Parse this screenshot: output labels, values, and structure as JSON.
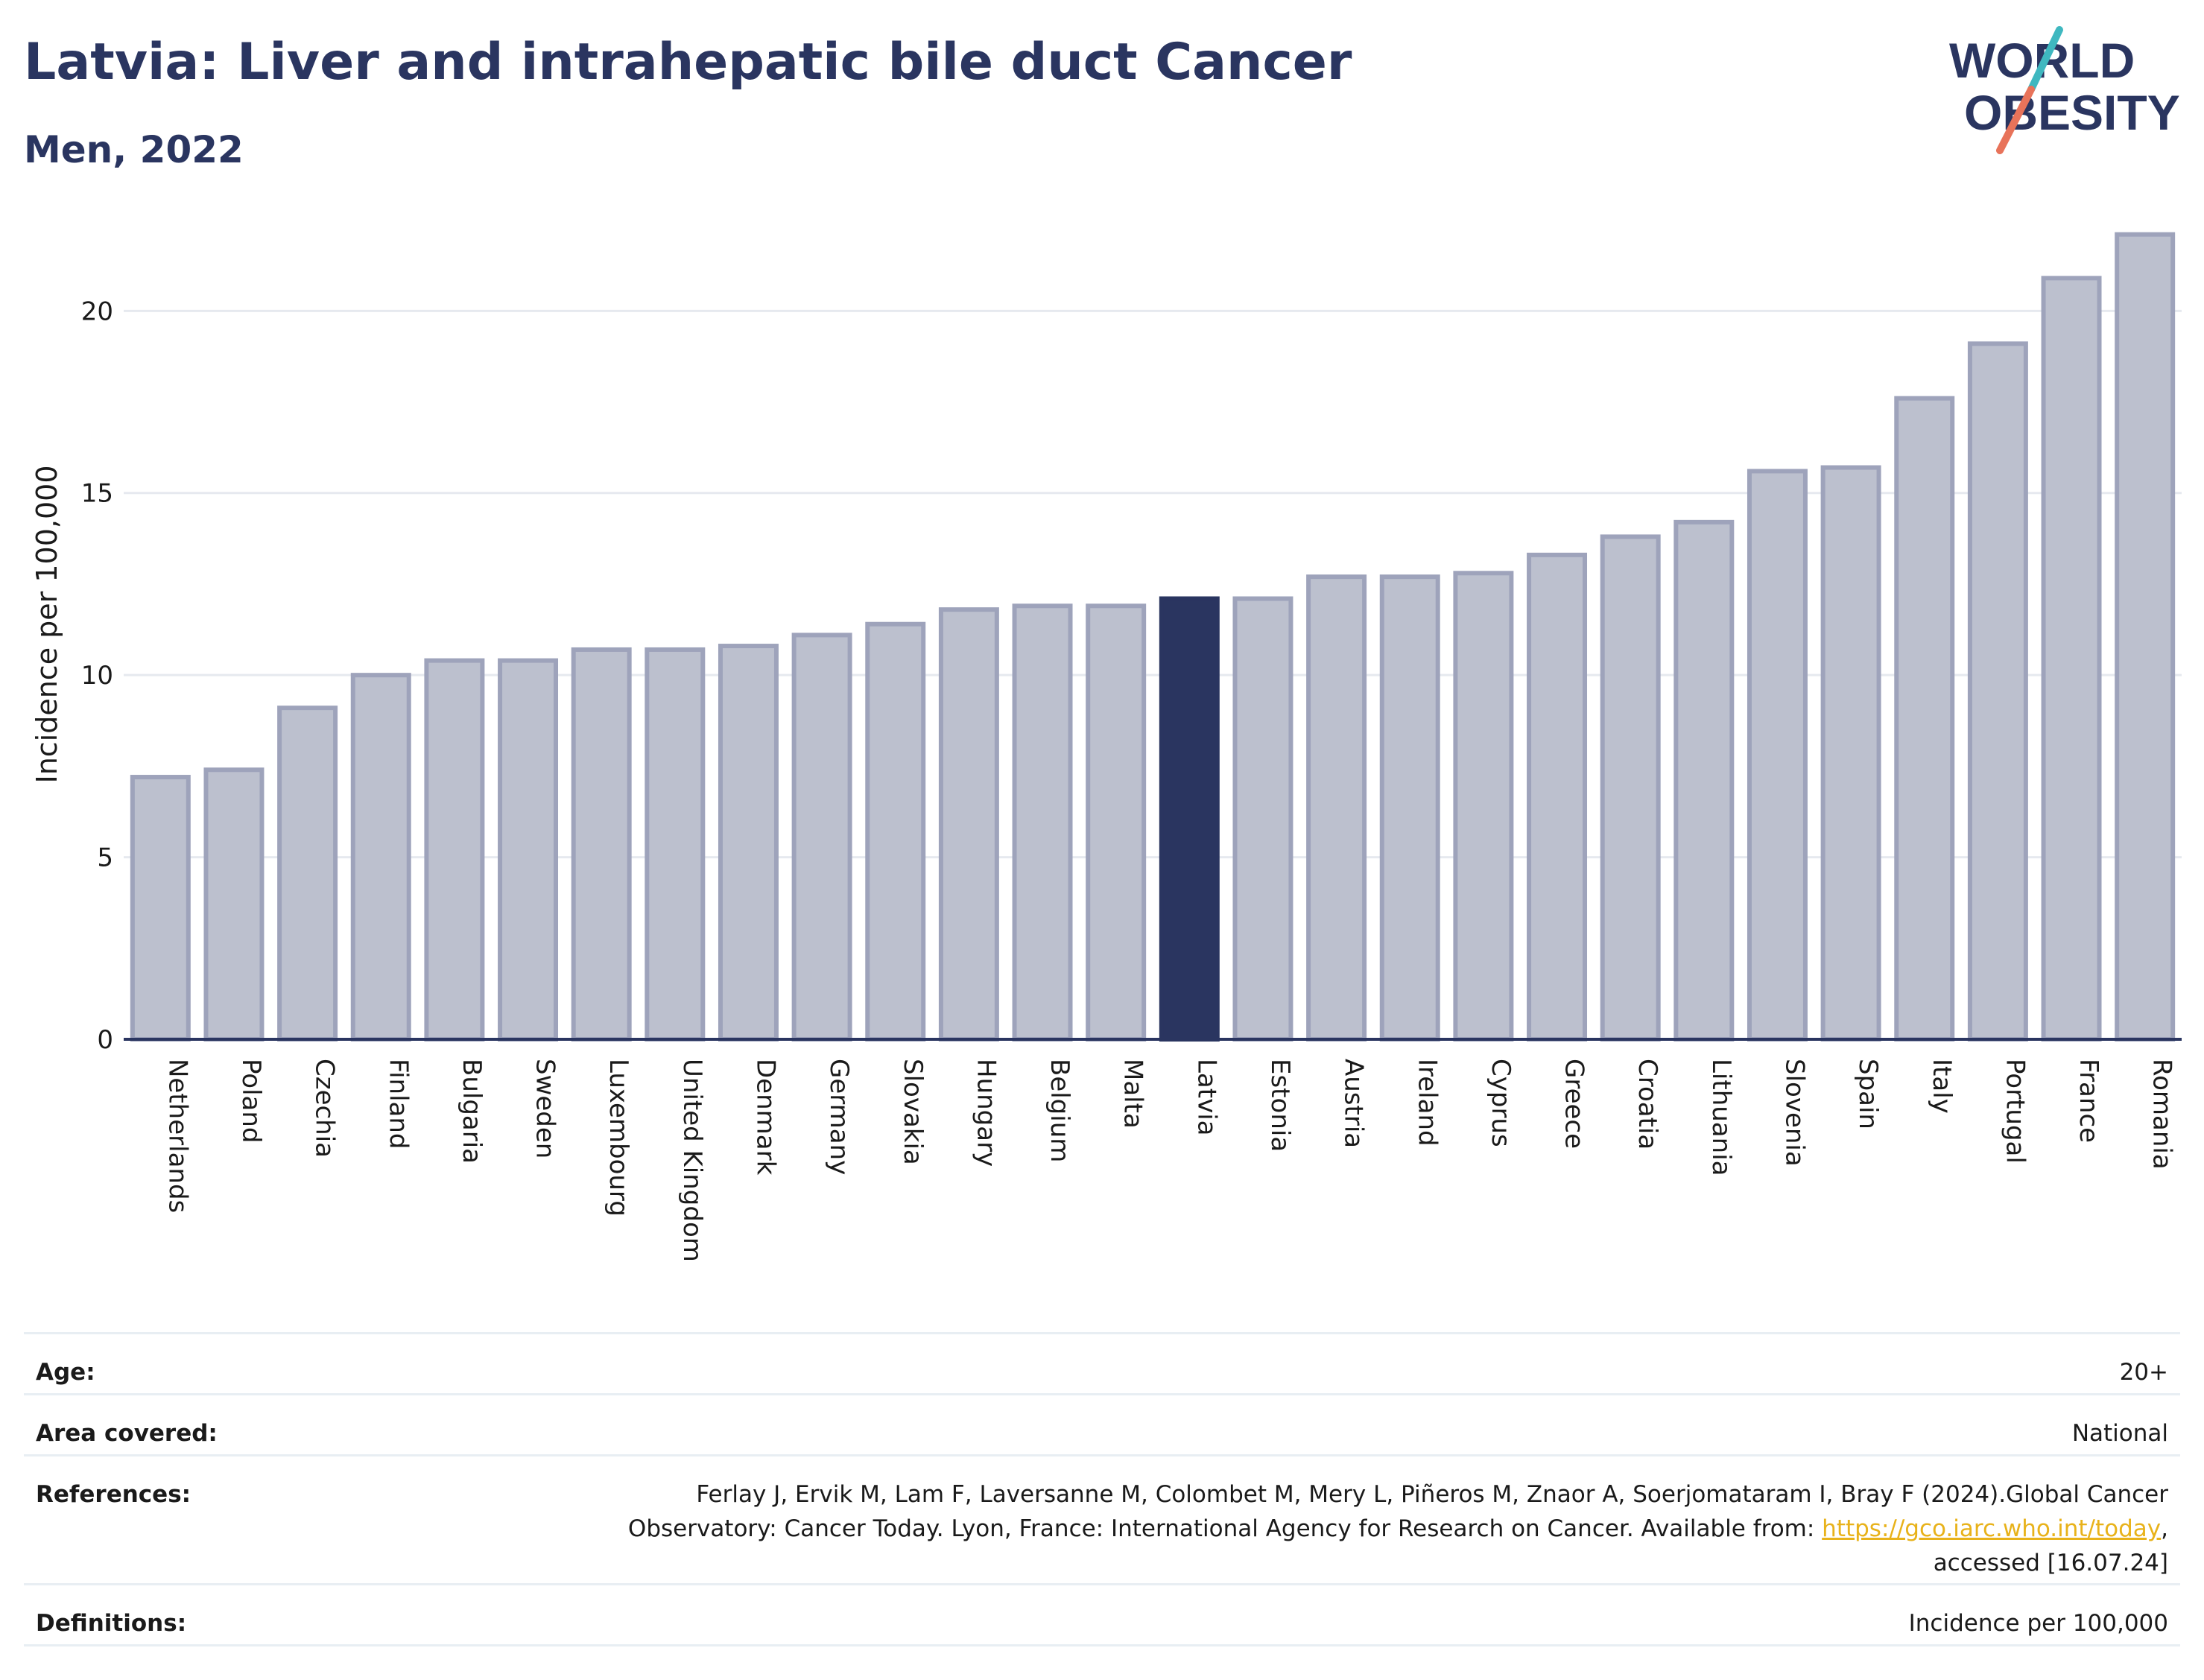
{
  "header": {
    "title": "Latvia: Liver and intrahepatic bile duct Cancer",
    "subtitle": "Men, 2022"
  },
  "logo": {
    "line1": "WORLD",
    "line2": "OBESITY",
    "colors": {
      "text": "#2a3560",
      "slash_teal": "#3fb8c0",
      "slash_coral": "#e8735a"
    }
  },
  "chart_data": {
    "type": "bar",
    "title": "Latvia: Liver and intrahepatic bile duct Cancer",
    "subtitle": "Men, 2022",
    "xlabel": "",
    "ylabel": "Incidence per 100,000",
    "ylim": [
      0,
      22.4
    ],
    "yticks": [
      0,
      5,
      10,
      15,
      20
    ],
    "grid": true,
    "highlight": "Latvia",
    "colors": {
      "bar": "#bcc0ce",
      "bar_outline": "#9ea3bb",
      "highlight": "#2a3560"
    },
    "categories": [
      "Netherlands",
      "Poland",
      "Czechia",
      "Finland",
      "Bulgaria",
      "Sweden",
      "Luxembourg",
      "United Kingdom",
      "Denmark",
      "Germany",
      "Slovakia",
      "Hungary",
      "Belgium",
      "Malta",
      "Latvia",
      "Estonia",
      "Austria",
      "Ireland",
      "Cyprus",
      "Greece",
      "Croatia",
      "Lithuania",
      "Slovenia",
      "Spain",
      "Italy",
      "Portugal",
      "France",
      "Romania"
    ],
    "values": [
      7.2,
      7.4,
      9.1,
      10.0,
      10.4,
      10.4,
      10.7,
      10.7,
      10.8,
      11.1,
      11.4,
      11.8,
      11.9,
      11.9,
      12.1,
      12.1,
      12.7,
      12.7,
      12.8,
      13.3,
      13.8,
      14.2,
      15.6,
      15.7,
      17.6,
      19.1,
      20.9,
      22.1
    ]
  },
  "info": {
    "age": {
      "label": "Age:",
      "value": "20+"
    },
    "area": {
      "label": "Area covered:",
      "value": "National"
    },
    "references": {
      "label": "References:",
      "text_before": "Ferlay J, Ervik M, Lam F, Laversanne M, Colombet M, Mery L, Piñeros M, Znaor A, Soerjomataram I, Bray F (2024).Global Cancer Observatory: Cancer Today. Lyon, France: International Agency for Research on Cancer. Available from: ",
      "link": "https://gco.iarc.who.int/today",
      "text_after": ", accessed [16.07.24]"
    },
    "definitions": {
      "label": "Definitions:",
      "value": "Incidence per 100,000"
    }
  }
}
